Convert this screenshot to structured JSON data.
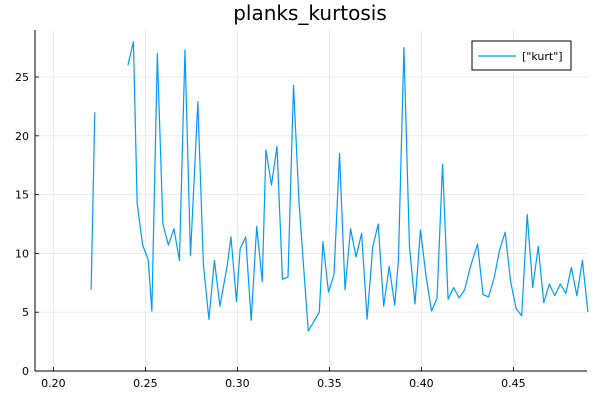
{
  "chart_data": {
    "type": "line",
    "title": "planks_kurtosis",
    "xlabel": "",
    "ylabel": "",
    "xlim": [
      0.19,
      0.49
    ],
    "ylim": [
      0,
      29
    ],
    "xticks": [
      0.2,
      0.25,
      0.3,
      0.35,
      0.4,
      0.45
    ],
    "xtick_labels": [
      "0.20",
      "0.25",
      "0.30",
      "0.35",
      "0.40",
      "0.45"
    ],
    "yticks": [
      0,
      5,
      10,
      15,
      20,
      25
    ],
    "ytick_labels": [
      "0",
      "5",
      "10",
      "15",
      "20",
      "25"
    ],
    "grid": true,
    "legend": {
      "position": "top-right",
      "entries": [
        "[\"kurt\"]"
      ]
    },
    "series": [
      {
        "name": "[\"kurt\"]",
        "color": "#009af9",
        "segments": [
          [
            [
              0.2205,
              6.9
            ],
            [
              0.2225,
              22.0
            ]
          ],
          [
            [
              0.2405,
              26.0
            ],
            [
              0.2435,
              28.0
            ],
            [
              0.2455,
              14.3
            ],
            [
              0.2485,
              10.7
            ],
            [
              0.2515,
              9.5
            ],
            [
              0.2535,
              5.1
            ],
            [
              0.2565,
              27.0
            ],
            [
              0.2595,
              12.5
            ],
            [
              0.2625,
              10.7
            ],
            [
              0.2655,
              12.1
            ],
            [
              0.2685,
              9.4
            ],
            [
              0.2715,
              27.3
            ],
            [
              0.2745,
              9.8
            ],
            [
              0.2785,
              22.9
            ],
            [
              0.2815,
              9.1
            ],
            [
              0.2845,
              4.4
            ],
            [
              0.2875,
              9.4
            ],
            [
              0.2905,
              5.5
            ],
            [
              0.2945,
              9.0
            ],
            [
              0.2965,
              11.4
            ],
            [
              0.2995,
              5.9
            ],
            [
              0.3015,
              10.4
            ],
            [
              0.3045,
              11.4
            ],
            [
              0.3075,
              4.3
            ],
            [
              0.3105,
              12.3
            ],
            [
              0.3135,
              7.6
            ],
            [
              0.3155,
              18.8
            ],
            [
              0.3185,
              15.8
            ],
            [
              0.3215,
              19.1
            ],
            [
              0.3245,
              7.8
            ],
            [
              0.3275,
              8.0
            ],
            [
              0.3305,
              24.3
            ],
            [
              0.3335,
              14.3
            ],
            [
              0.3385,
              3.4
            ],
            [
              0.3445,
              5.0
            ],
            [
              0.3465,
              11.0
            ],
            [
              0.3495,
              6.7
            ],
            [
              0.3525,
              8.2
            ],
            [
              0.3555,
              18.5
            ],
            [
              0.3585,
              6.9
            ],
            [
              0.3615,
              12.1
            ],
            [
              0.3645,
              9.7
            ],
            [
              0.3675,
              11.7
            ],
            [
              0.3705,
              4.4
            ],
            [
              0.3735,
              10.5
            ],
            [
              0.3765,
              12.5
            ],
            [
              0.3795,
              5.5
            ],
            [
              0.3825,
              8.9
            ],
            [
              0.3855,
              5.6
            ],
            [
              0.3875,
              9.4
            ],
            [
              0.3905,
              27.5
            ],
            [
              0.3935,
              10.6
            ],
            [
              0.3965,
              5.7
            ],
            [
              0.3995,
              12.0
            ],
            [
              0.4025,
              8.1
            ],
            [
              0.4055,
              5.1
            ],
            [
              0.4085,
              6.2
            ],
            [
              0.4115,
              17.6
            ],
            [
              0.4145,
              6.1
            ],
            [
              0.4175,
              7.1
            ],
            [
              0.4205,
              6.2
            ],
            [
              0.4235,
              6.9
            ],
            [
              0.4265,
              8.8
            ],
            [
              0.4305,
              10.8
            ],
            [
              0.4335,
              6.5
            ],
            [
              0.4365,
              6.3
            ],
            [
              0.4395,
              7.9
            ],
            [
              0.4425,
              10.3
            ],
            [
              0.4455,
              11.8
            ],
            [
              0.4485,
              7.6
            ],
            [
              0.4515,
              5.3
            ],
            [
              0.4545,
              4.7
            ],
            [
              0.4575,
              13.3
            ],
            [
              0.4605,
              7.1
            ],
            [
              0.4635,
              10.6
            ],
            [
              0.4665,
              5.8
            ],
            [
              0.4695,
              7.4
            ],
            [
              0.4725,
              6.4
            ],
            [
              0.4755,
              7.4
            ],
            [
              0.4785,
              6.6
            ],
            [
              0.4815,
              8.8
            ],
            [
              0.4845,
              6.4
            ],
            [
              0.4875,
              9.4
            ],
            [
              0.4905,
              5.0
            ]
          ]
        ]
      }
    ]
  }
}
